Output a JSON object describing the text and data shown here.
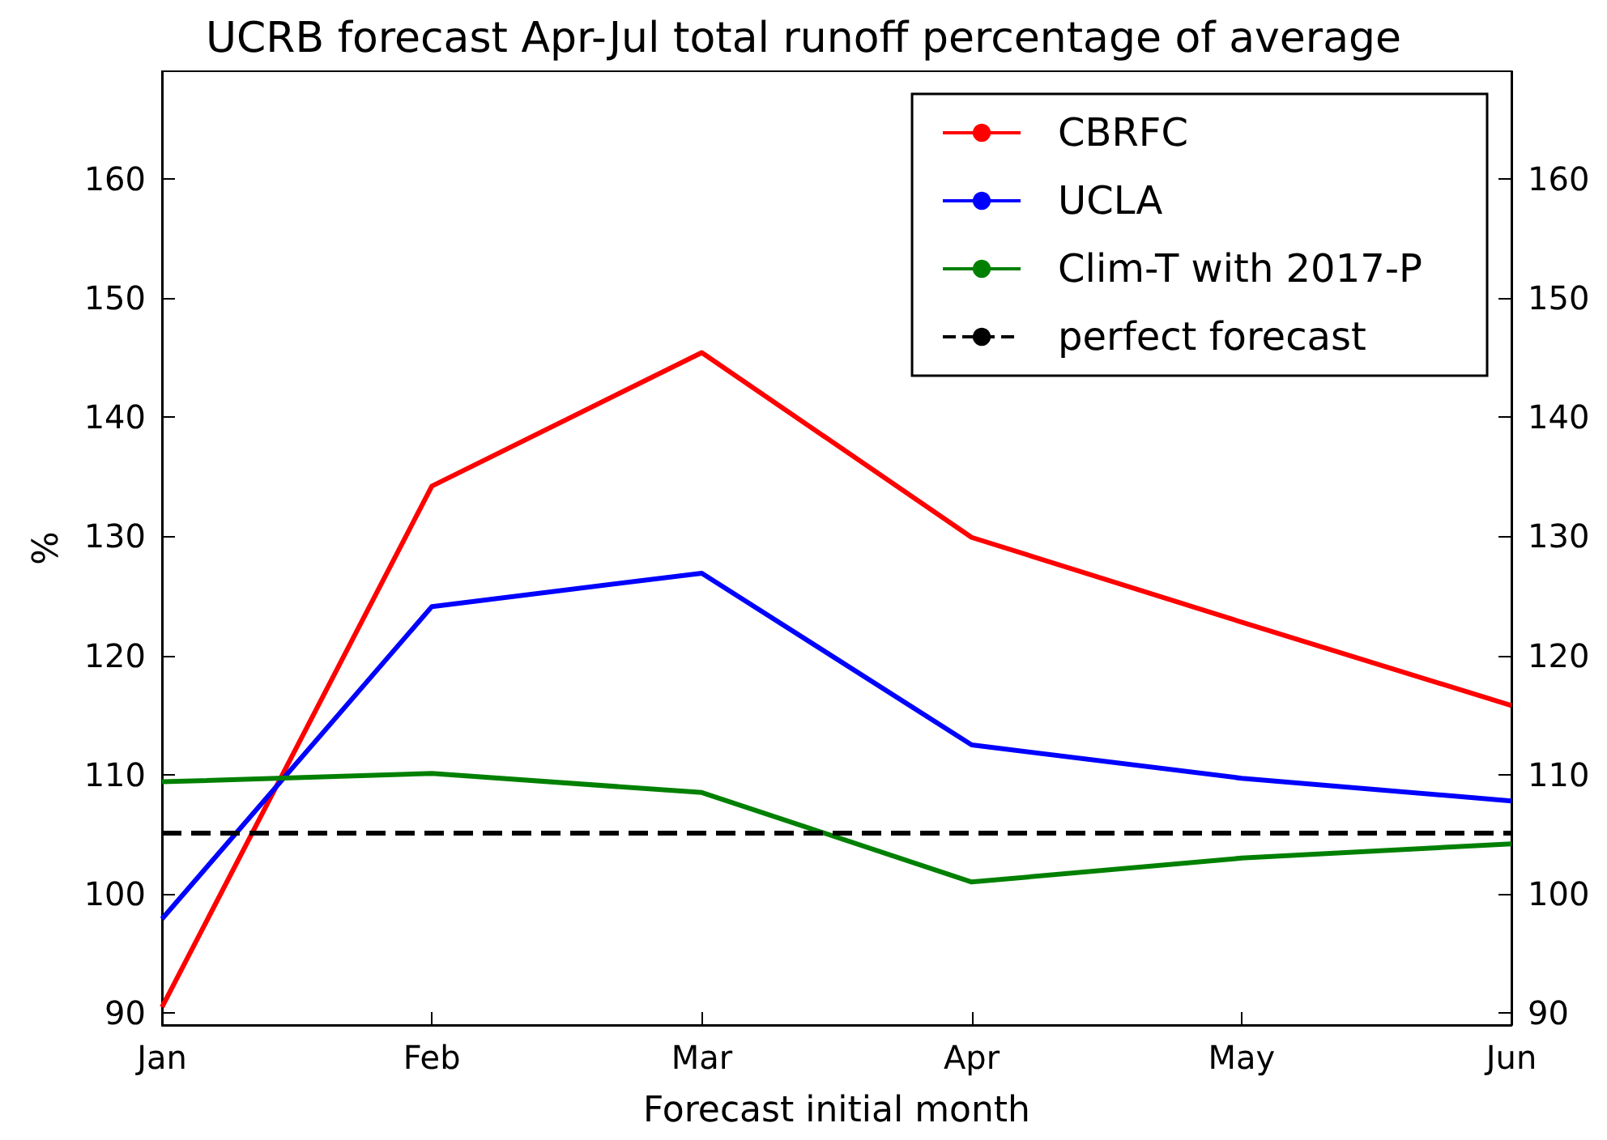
{
  "chart_data": {
    "type": "line",
    "title": "UCRB forecast Apr-Jul total runoff percentage of average",
    "xlabel": "Forecast initial month",
    "ylabel": "%",
    "categories": [
      "Jan",
      "Feb",
      "Mar",
      "Apr",
      "May",
      "Jun"
    ],
    "series": [
      {
        "name": "CBRFC",
        "color": "#ff0000",
        "values": [
          90.5,
          134.2,
          145.4,
          129.9,
          122.8,
          115.8
        ]
      },
      {
        "name": "UCLA",
        "color": "#0000ff",
        "values": [
          97.9,
          124.1,
          126.9,
          112.5,
          109.7,
          107.8
        ]
      },
      {
        "name": "Clim-T with 2017-P",
        "color": "#008000",
        "values": [
          109.4,
          110.1,
          108.5,
          101.0,
          103.0,
          104.2
        ]
      },
      {
        "name": "perfect forecast",
        "color": "#000000",
        "line_style": "dashed",
        "values": [
          105.1,
          105.1,
          105.1,
          105.1,
          105.1,
          105.1
        ]
      }
    ],
    "ylim": [
      89,
      169
    ],
    "yticks": [
      90,
      100,
      110,
      120,
      130,
      140,
      150,
      160
    ],
    "y2lim": [
      89,
      169
    ],
    "y2ticks": [
      90,
      100,
      110,
      120,
      130,
      140,
      150,
      160
    ],
    "grid": false,
    "legend": "top right",
    "marker": "none",
    "line_style": "solid"
  }
}
